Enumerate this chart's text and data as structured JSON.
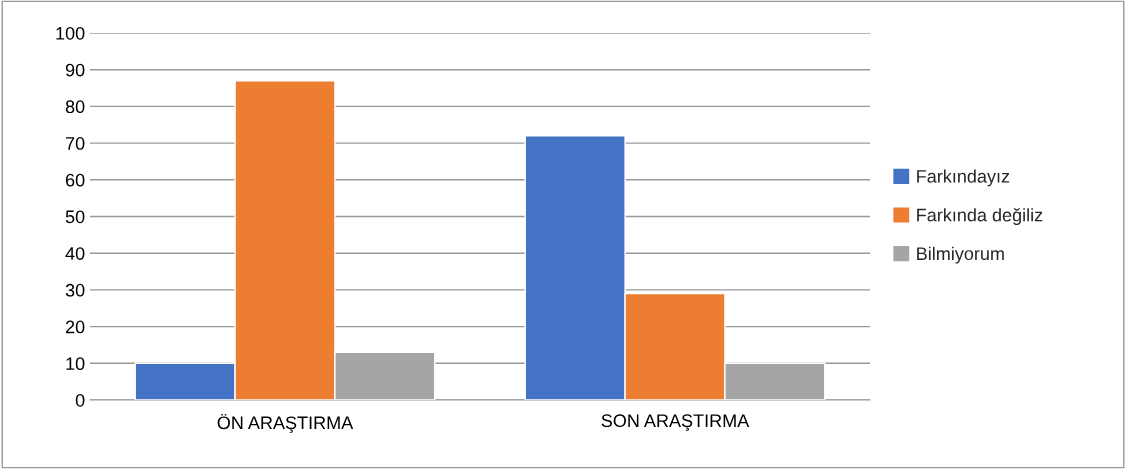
{
  "chart_data": {
    "type": "bar",
    "categories": [
      "ÖN ARAŞTIRMA",
      "SON ARAŞTIRMA"
    ],
    "series": [
      {
        "name": "Farkındayız",
        "color": "#4472c4",
        "values": [
          10,
          72
        ]
      },
      {
        "name": "Farkında değiliz",
        "color": "#ed7d31",
        "values": [
          87,
          29
        ]
      },
      {
        "name": "Bilmiyorum",
        "color": "#a5a5a5",
        "values": [
          13,
          10
        ]
      }
    ],
    "ylim": [
      0,
      100
    ],
    "yticks": [
      0,
      10,
      20,
      30,
      40,
      50,
      60,
      70,
      80,
      90,
      100
    ],
    "grid": "y",
    "legend": "right"
  }
}
